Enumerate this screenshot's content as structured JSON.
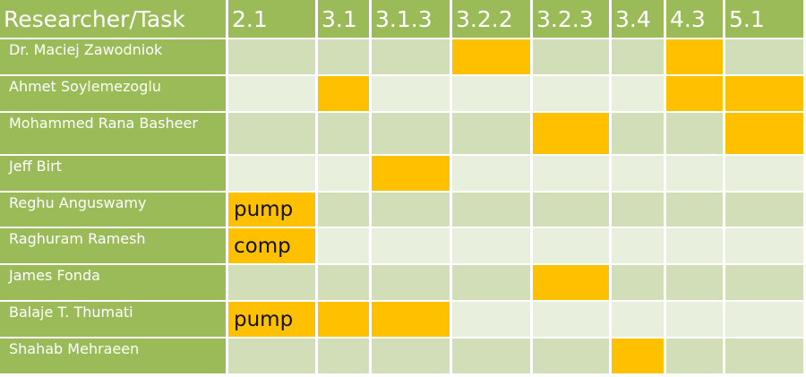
{
  "table": {
    "corner": "Researcher/Task",
    "columns": [
      "2.1",
      "3.1",
      "3.1.3",
      "3.2.2",
      "3.2.3",
      "3.4",
      "4.3",
      "5.1"
    ],
    "rows": [
      {
        "name": "Dr. Maciej Zawodniok",
        "assigned": [
          false,
          false,
          false,
          true,
          false,
          false,
          true,
          false
        ],
        "notes": [
          null,
          null,
          null,
          null,
          null,
          null,
          null,
          null
        ]
      },
      {
        "name": "Ahmet Soylemezoglu",
        "assigned": [
          false,
          true,
          false,
          false,
          false,
          false,
          true,
          true
        ],
        "notes": [
          null,
          null,
          null,
          null,
          null,
          null,
          null,
          null
        ]
      },
      {
        "name": "Mohammed Rana Basheer",
        "assigned": [
          false,
          false,
          false,
          false,
          true,
          false,
          false,
          true
        ],
        "notes": [
          null,
          null,
          null,
          null,
          null,
          null,
          null,
          null
        ]
      },
      {
        "name": "Jeff Birt",
        "assigned": [
          false,
          false,
          true,
          false,
          false,
          false,
          false,
          false
        ],
        "notes": [
          null,
          null,
          null,
          null,
          null,
          null,
          null,
          null
        ]
      },
      {
        "name": "Reghu Anguswamy",
        "assigned": [
          true,
          false,
          false,
          false,
          false,
          false,
          false,
          false
        ],
        "notes": [
          "pump",
          null,
          null,
          null,
          null,
          null,
          null,
          null
        ]
      },
      {
        "name": "Raghuram Ramesh",
        "assigned": [
          true,
          false,
          false,
          false,
          false,
          false,
          false,
          false
        ],
        "notes": [
          "comp",
          null,
          null,
          null,
          null,
          null,
          null,
          null
        ]
      },
      {
        "name": "James Fonda",
        "assigned": [
          false,
          false,
          false,
          false,
          true,
          false,
          false,
          false
        ],
        "notes": [
          null,
          null,
          null,
          null,
          null,
          null,
          null,
          null
        ]
      },
      {
        "name": "Balaje T. Thumati",
        "assigned": [
          true,
          true,
          true,
          false,
          false,
          false,
          false,
          false
        ],
        "notes": [
          "pump",
          null,
          null,
          null,
          null,
          null,
          null,
          null
        ]
      },
      {
        "name": "Shahab Mehraeen",
        "assigned": [
          false,
          false,
          false,
          false,
          false,
          true,
          false,
          false
        ],
        "notes": [
          null,
          null,
          null,
          null,
          null,
          null,
          null,
          null
        ]
      }
    ]
  }
}
